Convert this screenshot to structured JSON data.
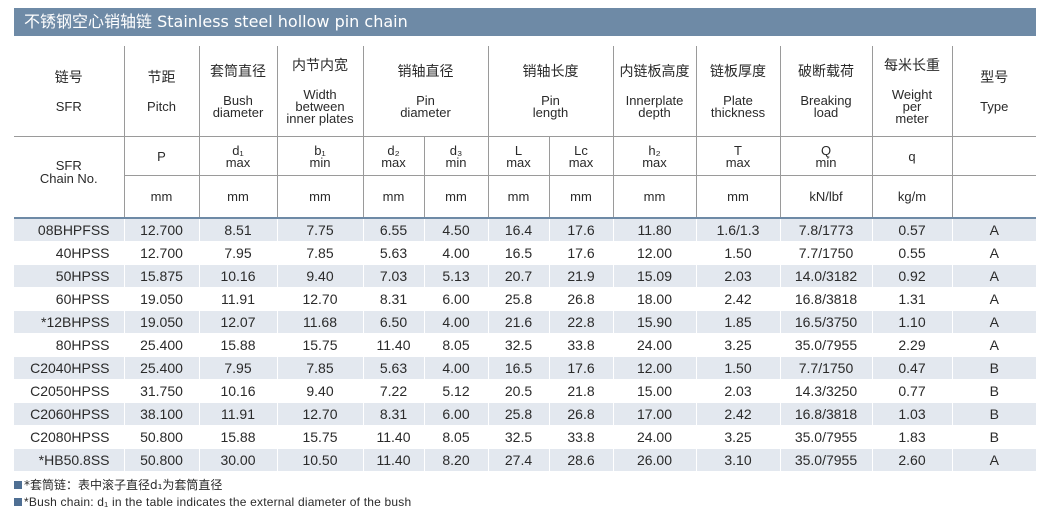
{
  "title": "不锈钢空心销轴链   Stainless steel hollow pin chain",
  "header": {
    "chain_no_zh": "链号",
    "chain_no_en": "SFR",
    "chain_no_full": "SFR\nChain No.",
    "columns": [
      {
        "zh": "节距",
        "en": "Pitch",
        "sym": "P",
        "lim": "",
        "unit": "mm"
      },
      {
        "zh": "套筒直径",
        "en": "Bush\ndiameter",
        "sym": "d₁",
        "lim": "max",
        "unit": "mm"
      },
      {
        "zh": "内节内宽",
        "en": "Width\nbetween\ninner plates",
        "sym": "b₁",
        "lim": "min",
        "unit": "mm"
      },
      {
        "zh": "销轴直径",
        "en": "Pin\ndiameter",
        "sub": [
          {
            "sym": "d₂",
            "lim": "max",
            "unit": "mm"
          },
          {
            "sym": "d₃",
            "lim": "min",
            "unit": "mm"
          }
        ]
      },
      {
        "zh": "销轴长度",
        "en": "Pin\nlength",
        "sub": [
          {
            "sym": "L",
            "lim": "max",
            "unit": "mm"
          },
          {
            "sym": "Lc",
            "lim": "max",
            "unit": "mm"
          }
        ]
      },
      {
        "zh": "内链板高度",
        "en": "Innerplate\ndepth",
        "sym": "h₂",
        "lim": "max",
        "unit": "mm"
      },
      {
        "zh": "链板厚度",
        "en": "Plate\nthickness",
        "sym": "T",
        "lim": "max",
        "unit": "mm"
      },
      {
        "zh": "破断载荷",
        "en": "Breaking\nload",
        "sym": "Q",
        "lim": "min",
        "unit": "kN/lbf"
      },
      {
        "zh": "每米长重",
        "en": "Weight\nper\nmeter",
        "sym": "q",
        "lim": "",
        "unit": "kg/m"
      },
      {
        "zh": "型号",
        "en": "Type",
        "sym": "",
        "lim": "",
        "unit": ""
      }
    ]
  },
  "rows": [
    [
      "08BHPFSS",
      "12.700",
      "8.51",
      "7.75",
      "6.55",
      "4.50",
      "16.4",
      "17.6",
      "11.80",
      "1.6/1.3",
      "7.8/1773",
      "0.57",
      "A"
    ],
    [
      "40HPSS",
      "12.700",
      "7.95",
      "7.85",
      "5.63",
      "4.00",
      "16.5",
      "17.6",
      "12.00",
      "1.50",
      "7.7/1750",
      "0.55",
      "A"
    ],
    [
      "50HPSS",
      "15.875",
      "10.16",
      "9.40",
      "7.03",
      "5.13",
      "20.7",
      "21.9",
      "15.09",
      "2.03",
      "14.0/3182",
      "0.92",
      "A"
    ],
    [
      "60HPSS",
      "19.050",
      "11.91",
      "12.70",
      "8.31",
      "6.00",
      "25.8",
      "26.8",
      "18.00",
      "2.42",
      "16.8/3818",
      "1.31",
      "A"
    ],
    [
      "*12BHPSS",
      "19.050",
      "12.07",
      "11.68",
      "6.50",
      "4.00",
      "21.6",
      "22.8",
      "15.90",
      "1.85",
      "16.5/3750",
      "1.10",
      "A"
    ],
    [
      "80HPSS",
      "25.400",
      "15.88",
      "15.75",
      "11.40",
      "8.05",
      "32.5",
      "33.8",
      "24.00",
      "3.25",
      "35.0/7955",
      "2.29",
      "A"
    ],
    [
      "C2040HPSS",
      "25.400",
      "7.95",
      "7.85",
      "5.63",
      "4.00",
      "16.5",
      "17.6",
      "12.00",
      "1.50",
      "7.7/1750",
      "0.47",
      "B"
    ],
    [
      "C2050HPSS",
      "31.750",
      "10.16",
      "9.40",
      "7.22",
      "5.12",
      "20.5",
      "21.8",
      "15.00",
      "2.03",
      "14.3/3250",
      "0.77",
      "B"
    ],
    [
      "C2060HPSS",
      "38.100",
      "11.91",
      "12.70",
      "8.31",
      "6.00",
      "25.8",
      "26.8",
      "17.00",
      "2.42",
      "16.8/3818",
      "1.03",
      "B"
    ],
    [
      "C2080HPSS",
      "50.800",
      "15.88",
      "15.75",
      "11.40",
      "8.05",
      "32.5",
      "33.8",
      "24.00",
      "3.25",
      "35.0/7955",
      "1.83",
      "B"
    ],
    [
      "*HB50.8SS",
      "50.800",
      "30.00",
      "10.50",
      "11.40",
      "8.20",
      "27.4",
      "28.6",
      "26.00",
      "3.10",
      "35.0/7955",
      "2.60",
      "A"
    ]
  ],
  "footnotes": {
    "zh": "*套筒链：表中滚子直径d₁为套筒直径",
    "en": "*Bush chain: d₁ in the table indicates the external diameter of the bush"
  },
  "colors": {
    "accent": "#6e8aa6",
    "row_shade": "#e3e8ef",
    "bullet": "#4f6f93"
  }
}
